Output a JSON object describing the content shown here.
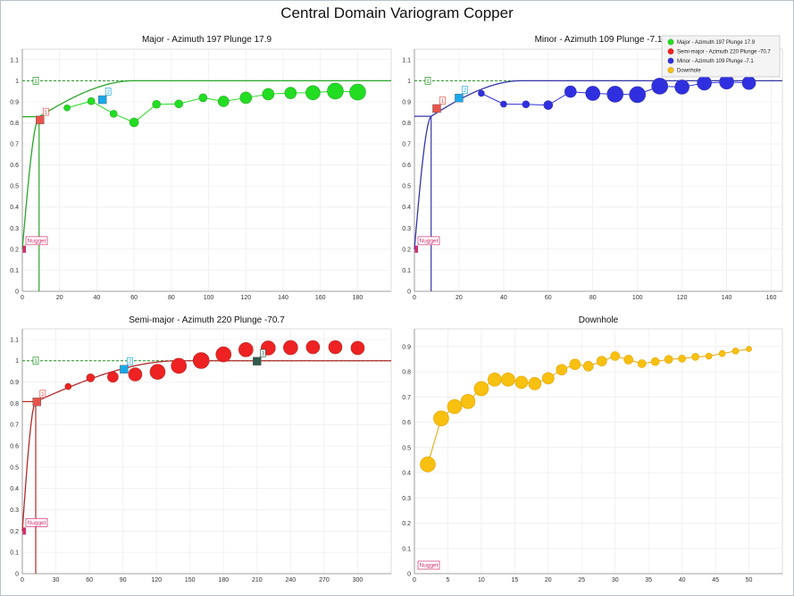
{
  "title": "Central Domain Variogram Copper",
  "colors": {
    "major": "#22dd22",
    "major_line": "#2aa62a",
    "semi": "#ee2222",
    "semi_line": "#b22a2a",
    "minor": "#2f2fe0",
    "minor_line": "#3535a8",
    "downhole": "#f8c010",
    "downhole_edge": "#e4a400",
    "sill": "#1f8f1f",
    "nugget": "#d03070",
    "marker_orange": "#e8534a",
    "marker_blue": "#1aa8e8",
    "marker_dark": "#2f5a4e"
  },
  "legend": {
    "items": [
      {
        "label": "Major - Azimuth 197 Plunge 17.9",
        "color": "#22dd22"
      },
      {
        "label": "Semi-major - Azimuth 220 Plunge -70.7",
        "color": "#ee2222"
      },
      {
        "label": "Minor - Azimuth 109 Plunge -7.1",
        "color": "#2f2fe0"
      },
      {
        "label": "Downhole",
        "color": "#f8c010"
      }
    ]
  },
  "chart_data": [
    {
      "id": "major",
      "type": "scatter",
      "title": "Major - Azimuth 197 Plunge 17.9",
      "xlim": [
        0,
        198
      ],
      "ylim": [
        0,
        1.15
      ],
      "xticks": [
        0,
        20,
        40,
        60,
        80,
        100,
        120,
        140,
        160,
        180
      ],
      "yticks": [
        0,
        0.1,
        0.2,
        0.3,
        0.4,
        0.5,
        0.6,
        0.7,
        0.8,
        0.9,
        1,
        1.1
      ],
      "sill": 1,
      "nugget": 0.2,
      "nugget_label": "Nugget",
      "model": {
        "nugget": 0.2,
        "s1": 0.58,
        "r1": 9,
        "s2": 0.22,
        "r2": 60,
        "sill": 1
      },
      "markers": [
        {
          "label": "1",
          "x": 9.5,
          "y": 0.814,
          "kind": "orange"
        },
        {
          "label": "2",
          "x": 43,
          "y": 0.91,
          "kind": "blue"
        },
        {
          "label": "1",
          "x": 0,
          "y": 1,
          "kind": "sill"
        }
      ],
      "points": [
        {
          "x": 24,
          "y": 0.871,
          "r": 3.5
        },
        {
          "x": 37,
          "y": 0.903,
          "r": 4
        },
        {
          "x": 49,
          "y": 0.843,
          "r": 4
        },
        {
          "x": 60,
          "y": 0.802,
          "r": 5
        },
        {
          "x": 72,
          "y": 0.888,
          "r": 4.5
        },
        {
          "x": 84,
          "y": 0.89,
          "r": 4.5
        },
        {
          "x": 97,
          "y": 0.919,
          "r": 4.5
        },
        {
          "x": 108,
          "y": 0.902,
          "r": 6
        },
        {
          "x": 120,
          "y": 0.919,
          "r": 6.5
        },
        {
          "x": 132,
          "y": 0.936,
          "r": 6.5
        },
        {
          "x": 144,
          "y": 0.942,
          "r": 6.5
        },
        {
          "x": 156,
          "y": 0.943,
          "r": 8
        },
        {
          "x": 168,
          "y": 0.951,
          "r": 9
        },
        {
          "x": 180,
          "y": 0.946,
          "r": 9
        }
      ],
      "connected": true,
      "series": "major"
    },
    {
      "id": "minor",
      "type": "scatter",
      "title": "Minor - Azimuth 109 Plunge -7.1",
      "xlim": [
        0,
        165
      ],
      "ylim": [
        0,
        1.15
      ],
      "xticks": [
        0,
        20,
        40,
        60,
        80,
        100,
        120,
        140,
        160
      ],
      "yticks": [
        0,
        0.1,
        0.2,
        0.3,
        0.4,
        0.5,
        0.6,
        0.7,
        0.8,
        0.9,
        1,
        1.1
      ],
      "sill": 1,
      "nugget": 0.2,
      "nugget_label": "Nugget",
      "model": {
        "nugget": 0.2,
        "s1": 0.58,
        "r1": 7.5,
        "s2": 0.22,
        "r2": 48,
        "sill": 1
      },
      "markers": [
        {
          "label": "1",
          "x": 10,
          "y": 0.868,
          "kind": "orange"
        },
        {
          "label": "2",
          "x": 20,
          "y": 0.918,
          "kind": "blue"
        },
        {
          "label": "1",
          "x": 0,
          "y": 1,
          "kind": "sill"
        }
      ],
      "points": [
        {
          "x": 30,
          "y": 0.94,
          "r": 3.5
        },
        {
          "x": 40,
          "y": 0.889,
          "r": 3.5
        },
        {
          "x": 50,
          "y": 0.888,
          "r": 4
        },
        {
          "x": 60,
          "y": 0.884,
          "r": 5
        },
        {
          "x": 70,
          "y": 0.948,
          "r": 6.5
        },
        {
          "x": 80,
          "y": 0.94,
          "r": 8
        },
        {
          "x": 90,
          "y": 0.936,
          "r": 9
        },
        {
          "x": 100,
          "y": 0.934,
          "r": 9
        },
        {
          "x": 110,
          "y": 0.974,
          "r": 9
        },
        {
          "x": 120,
          "y": 0.97,
          "r": 8
        },
        {
          "x": 130,
          "y": 0.989,
          "r": 8
        },
        {
          "x": 140,
          "y": 0.994,
          "r": 8
        },
        {
          "x": 150,
          "y": 0.99,
          "r": 7.5
        }
      ],
      "connected": true,
      "series": "minor"
    },
    {
      "id": "semi",
      "type": "scatter",
      "title": "Semi-major - Azimuth 220 Plunge -70.7",
      "xlim": [
        0,
        330
      ],
      "ylim": [
        0,
        1.15
      ],
      "xticks": [
        0,
        30,
        60,
        90,
        120,
        150,
        180,
        210,
        240,
        270,
        300
      ],
      "yticks": [
        0,
        0.1,
        0.2,
        0.3,
        0.4,
        0.5,
        0.6,
        0.7,
        0.8,
        0.9,
        1,
        1.1
      ],
      "sill": 1,
      "nugget": 0.2,
      "nugget_label": "Nugget",
      "model": {
        "nugget": 0.2,
        "s1": 0.58,
        "r1": 12,
        "s2": 0.22,
        "r2": 140,
        "sill": 1
      },
      "markers": [
        {
          "label": "1",
          "x": 13,
          "y": 0.807,
          "kind": "orange"
        },
        {
          "label": "2",
          "x": 91,
          "y": 0.96,
          "kind": "blue"
        },
        {
          "label": "3",
          "x": 210,
          "y": 0.998,
          "kind": "dark"
        },
        {
          "label": "1",
          "x": 0,
          "y": 1,
          "kind": "sill"
        }
      ],
      "points": [
        {
          "x": 41,
          "y": 0.879,
          "r": 3.5
        },
        {
          "x": 61,
          "y": 0.92,
          "r": 4.5
        },
        {
          "x": 81,
          "y": 0.924,
          "r": 6
        },
        {
          "x": 101,
          "y": 0.936,
          "r": 7.5
        },
        {
          "x": 121,
          "y": 0.948,
          "r": 8.5
        },
        {
          "x": 140,
          "y": 0.976,
          "r": 8.5
        },
        {
          "x": 160,
          "y": 1.001,
          "r": 9
        },
        {
          "x": 180,
          "y": 1.03,
          "r": 8.5
        },
        {
          "x": 200,
          "y": 1.052,
          "r": 8
        },
        {
          "x": 220,
          "y": 1.06,
          "r": 8
        },
        {
          "x": 240,
          "y": 1.062,
          "r": 8
        },
        {
          "x": 260,
          "y": 1.064,
          "r": 7.5
        },
        {
          "x": 280,
          "y": 1.064,
          "r": 7.5
        },
        {
          "x": 300,
          "y": 1.06,
          "r": 7.5
        }
      ],
      "connected": false,
      "series": "semi"
    },
    {
      "id": "downhole",
      "type": "scatter",
      "title": "Downhole",
      "xlim": [
        0,
        55
      ],
      "ylim": [
        0,
        0.97
      ],
      "xticks": [
        0,
        5,
        10,
        15,
        20,
        25,
        30,
        35,
        40,
        45,
        50
      ],
      "yticks": [
        0,
        0.1,
        0.2,
        0.3,
        0.4,
        0.5,
        0.6,
        0.7,
        0.8,
        0.9
      ],
      "nugget": 0,
      "nugget_label": "Nugget",
      "points": [
        {
          "x": 2,
          "y": 0.433,
          "r": 8.5
        },
        {
          "x": 4,
          "y": 0.615,
          "r": 8.5
        },
        {
          "x": 6,
          "y": 0.662,
          "r": 8
        },
        {
          "x": 8,
          "y": 0.682,
          "r": 8
        },
        {
          "x": 10,
          "y": 0.733,
          "r": 8
        },
        {
          "x": 12,
          "y": 0.769,
          "r": 7.5
        },
        {
          "x": 14,
          "y": 0.769,
          "r": 7.5
        },
        {
          "x": 16,
          "y": 0.758,
          "r": 7
        },
        {
          "x": 18,
          "y": 0.753,
          "r": 7
        },
        {
          "x": 20,
          "y": 0.774,
          "r": 6.5
        },
        {
          "x": 22,
          "y": 0.808,
          "r": 6
        },
        {
          "x": 24,
          "y": 0.829,
          "r": 6
        },
        {
          "x": 26,
          "y": 0.822,
          "r": 5.5
        },
        {
          "x": 28,
          "y": 0.842,
          "r": 5.5
        },
        {
          "x": 30,
          "y": 0.862,
          "r": 5
        },
        {
          "x": 32,
          "y": 0.848,
          "r": 5
        },
        {
          "x": 34,
          "y": 0.832,
          "r": 4.5
        },
        {
          "x": 36,
          "y": 0.84,
          "r": 4.5
        },
        {
          "x": 38,
          "y": 0.849,
          "r": 4.5
        },
        {
          "x": 40,
          "y": 0.852,
          "r": 4
        },
        {
          "x": 42,
          "y": 0.859,
          "r": 4
        },
        {
          "x": 44,
          "y": 0.862,
          "r": 3.5
        },
        {
          "x": 46,
          "y": 0.872,
          "r": 3.5
        },
        {
          "x": 48,
          "y": 0.882,
          "r": 3.5
        },
        {
          "x": 50,
          "y": 0.89,
          "r": 3
        }
      ],
      "connected": true,
      "series": "downhole"
    }
  ]
}
